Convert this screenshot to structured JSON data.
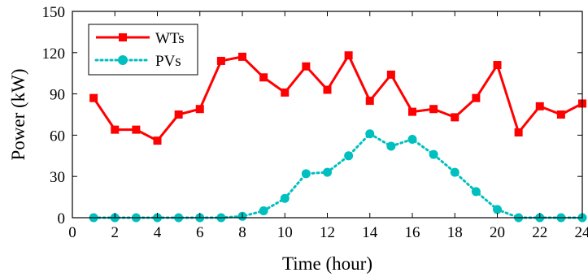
{
  "chart_data": {
    "type": "line",
    "xlabel": "Time (hour)",
    "ylabel": "Power (kW)",
    "xlim": [
      0,
      24
    ],
    "ylim": [
      0,
      150
    ],
    "xticks": [
      0,
      2,
      4,
      6,
      8,
      10,
      12,
      14,
      16,
      18,
      20,
      22,
      24
    ],
    "yticks": [
      0,
      30,
      60,
      90,
      120,
      150
    ],
    "grid": false,
    "legend_position": "top-left",
    "series": [
      {
        "name": "WTs",
        "color": "#ff0000",
        "line_style": "solid",
        "marker": "square",
        "x": [
          1,
          2,
          3,
          4,
          5,
          6,
          7,
          8,
          9,
          10,
          11,
          12,
          13,
          14,
          15,
          16,
          17,
          18,
          19,
          20,
          21,
          22,
          23,
          24
        ],
        "values": [
          87,
          64,
          64,
          56,
          75,
          79,
          114,
          117,
          102,
          91,
          110,
          93,
          118,
          85,
          104,
          77,
          79,
          73,
          87,
          111,
          62,
          81,
          75,
          83
        ]
      },
      {
        "name": "PVs",
        "color": "#00bfbf",
        "line_style": "dotted",
        "marker": "circle",
        "x": [
          1,
          2,
          3,
          4,
          5,
          6,
          7,
          8,
          9,
          10,
          11,
          12,
          13,
          14,
          15,
          16,
          17,
          18,
          19,
          20,
          21,
          22,
          23,
          24
        ],
        "values": [
          0,
          0,
          0,
          0,
          0,
          0,
          0,
          1,
          5,
          14,
          32,
          33,
          45,
          61,
          52,
          57,
          46,
          33,
          19,
          6,
          0,
          0,
          0,
          0
        ]
      }
    ]
  }
}
